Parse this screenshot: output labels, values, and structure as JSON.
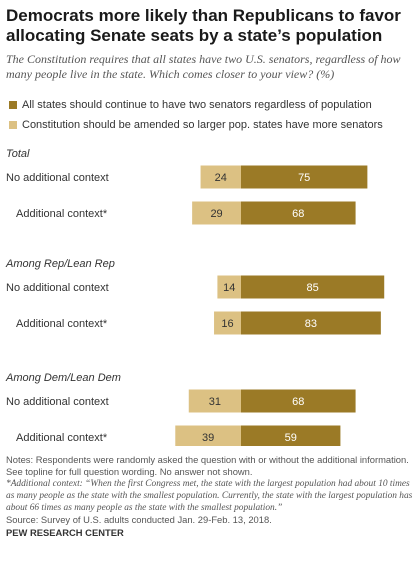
{
  "title": "Democrats more likely than Republicans to favor allocating Senate seats by a state’s population",
  "subtitle": "The Constitution requires that all states have two U.S. senators, regardless of how many people live in the state. Which comes closer to your view? (%)",
  "legend": [
    {
      "label": "All states should continue to have two senators regardless of population",
      "color": "#9b7a26"
    },
    {
      "label": "Constitution should be amended so larger pop. states have more senators",
      "color": "#dcc183"
    }
  ],
  "chart_data": {
    "type": "bar",
    "orientation": "horizontal",
    "stacked": "diverging",
    "groups": [
      {
        "label": "Total",
        "rows": [
          {
            "label": "No additional context",
            "amend": 24,
            "keep": 75
          },
          {
            "label": "Additional context*",
            "amend": 29,
            "keep": 68
          }
        ]
      },
      {
        "label": "Among Rep/Lean Rep",
        "rows": [
          {
            "label": "No additional context",
            "amend": 14,
            "keep": 85
          },
          {
            "label": "Additional context*",
            "amend": 16,
            "keep": 83
          }
        ]
      },
      {
        "label": "Among Dem/Lean Dem",
        "rows": [
          {
            "label": "No additional context",
            "amend": 31,
            "keep": 68
          },
          {
            "label": "Additional context*",
            "amend": 39,
            "keep": 59
          }
        ]
      }
    ],
    "colors": {
      "keep": "#9b7a26",
      "amend": "#dcc183"
    }
  },
  "notes": {
    "line1": "Notes: Respondents were randomly asked the question with or without the additional information. See topline for full question wording. No answer not shown.",
    "line2": "*Additional context: “When the first Congress met, the state with the largest population had about 10 times as many people as the state with the smallest population. Currently, the state with the largest population has about 66 times as many people as the state with the smallest population.”",
    "source": "Source: Survey of U.S. adults conducted Jan. 29-Feb. 13, 2018.",
    "org": "PEW RESEARCH CENTER"
  }
}
